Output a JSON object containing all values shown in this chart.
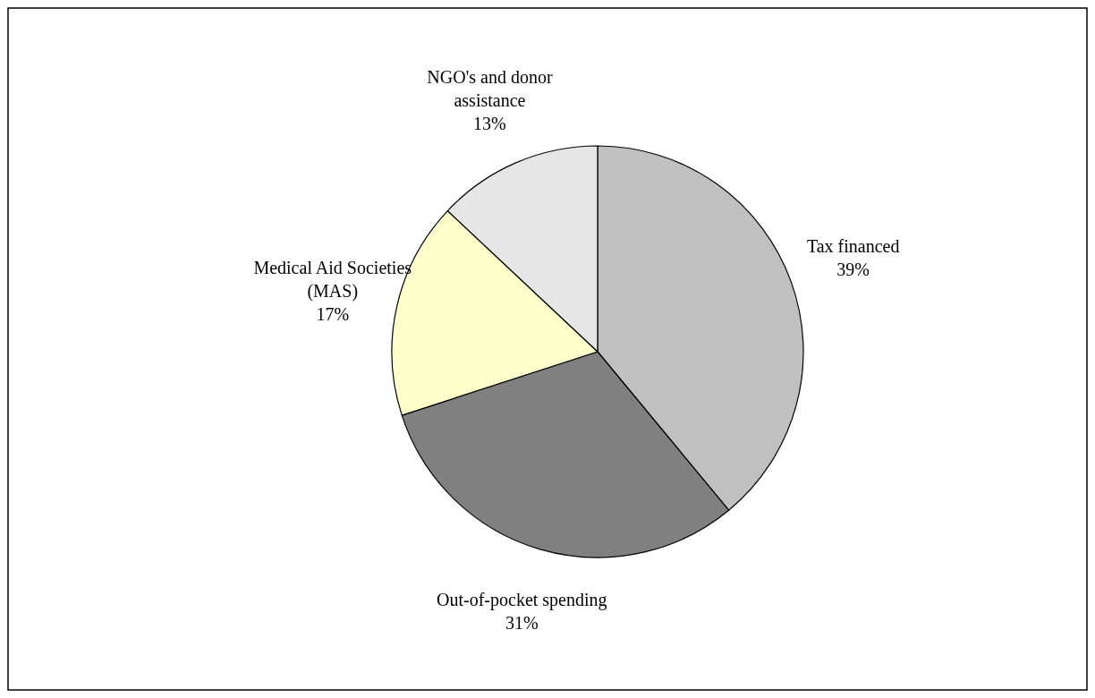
{
  "chart_data": {
    "type": "pie",
    "categories": [
      "Tax financed",
      "Out-of-pocket spending",
      "Medical Aid Societies (MAS)",
      "NGO's and donor assistance"
    ],
    "values": [
      39,
      31,
      17,
      13
    ],
    "value_labels": [
      "39%",
      "31%",
      "17%",
      "13%"
    ],
    "colors": [
      "#c0c0c0",
      "#808080",
      "#ffffcc",
      "#e6e6e6"
    ]
  }
}
